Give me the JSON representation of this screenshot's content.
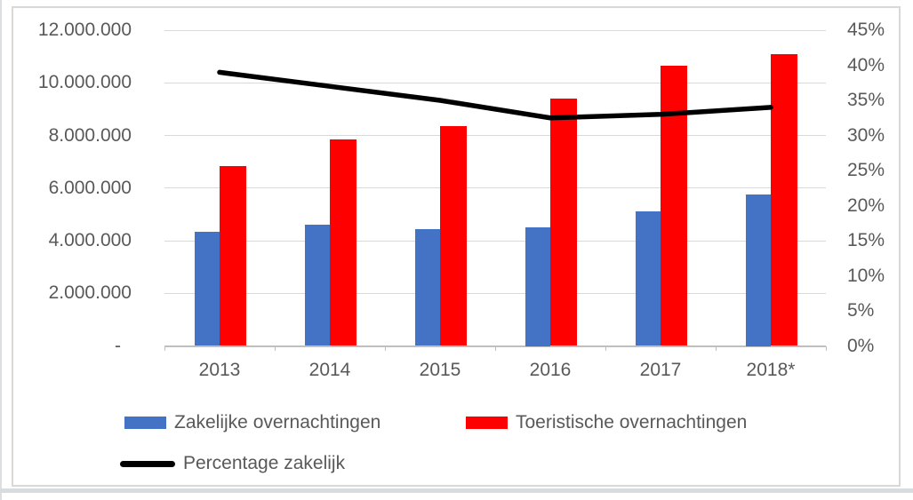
{
  "chart_data": {
    "type": "bar",
    "subtype": "combo-bar-line-dual-axis",
    "title": "",
    "categories": [
      "2013",
      "2014",
      "2015",
      "2016",
      "2017",
      "2018*"
    ],
    "series": [
      {
        "name": "Zakelijke overnachtingen",
        "render": "bar",
        "axis": "left",
        "color": "#4472C4",
        "values": [
          4350000,
          4600000,
          4450000,
          4500000,
          5100000,
          5750000
        ]
      },
      {
        "name": "Toeristische overnachtingen",
        "render": "bar",
        "axis": "left",
        "color": "#FF0000",
        "values": [
          6850000,
          7850000,
          8350000,
          9400000,
          10650000,
          11100000
        ]
      },
      {
        "name": "Percentage zakelijk",
        "render": "line",
        "axis": "right",
        "color": "#000000",
        "values": [
          39,
          37,
          35,
          32.5,
          33,
          34
        ]
      }
    ],
    "left_axis": {
      "min": 0,
      "max": 12000000,
      "step": 2000000,
      "tick_labels_bottom_to_top": [
        "-",
        "2.000.000",
        "4.000.000",
        "6.000.000",
        "8.000.000",
        "10.000.000",
        "12.000.000"
      ]
    },
    "right_axis": {
      "min": 0,
      "max": 45,
      "step": 5,
      "unit": "%",
      "tick_labels_bottom_to_top": [
        "0%",
        "5%",
        "10%",
        "15%",
        "20%",
        "25%",
        "30%",
        "35%",
        "40%",
        "45%"
      ]
    },
    "grid": "horizontal gridlines at every 2.000.000 of left axis",
    "legend_position": "bottom-left, two rows"
  },
  "legend": {
    "items": [
      {
        "label": "Zakelijke overnachtingen",
        "color": "#4472C4",
        "shape": "rect"
      },
      {
        "label": "Toeristische overnachtingen",
        "color": "#FF0000",
        "shape": "rect"
      },
      {
        "label": "Percentage zakelijk",
        "color": "#000000",
        "shape": "line"
      }
    ]
  },
  "colors": {
    "bar_blue": "#4472C4",
    "bar_red": "#FF0000",
    "line_black": "#000000",
    "gridline": "#d9d9d9",
    "axis_line": "#bfbfbf",
    "text": "#595959",
    "frame_border": "#d8d8d8"
  }
}
